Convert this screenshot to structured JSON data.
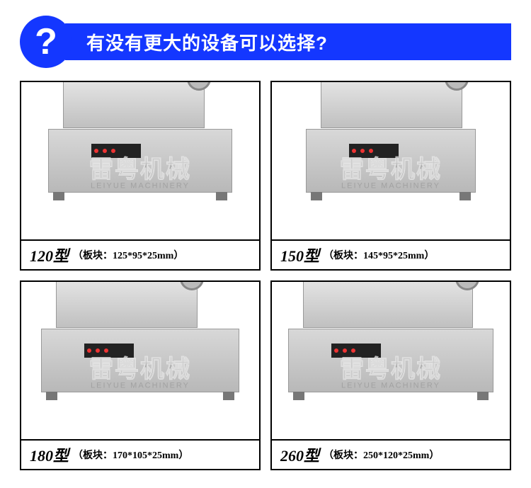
{
  "header": {
    "icon_glyph": "?",
    "title": "有没有更大的设备可以选择?"
  },
  "watermark": {
    "cn": "雷粤机械",
    "en": "LEIYUE MACHINERY"
  },
  "products": [
    {
      "model": "120型",
      "spec_label": "（板块：",
      "spec_value": "125*95*25mm",
      "spec_close": "）"
    },
    {
      "model": "150型",
      "spec_label": "（板块：",
      "spec_value": "145*95*25mm",
      "spec_close": "）"
    },
    {
      "model": "180型",
      "spec_label": "（板块：",
      "spec_value": "170*105*25mm",
      "spec_close": "）"
    },
    {
      "model": "260型",
      "spec_label": "（板块：",
      "spec_value": "250*120*25mm",
      "spec_close": "）"
    }
  ],
  "colors": {
    "brand_blue": "#1437ff",
    "border": "#000000",
    "background": "#ffffff"
  }
}
